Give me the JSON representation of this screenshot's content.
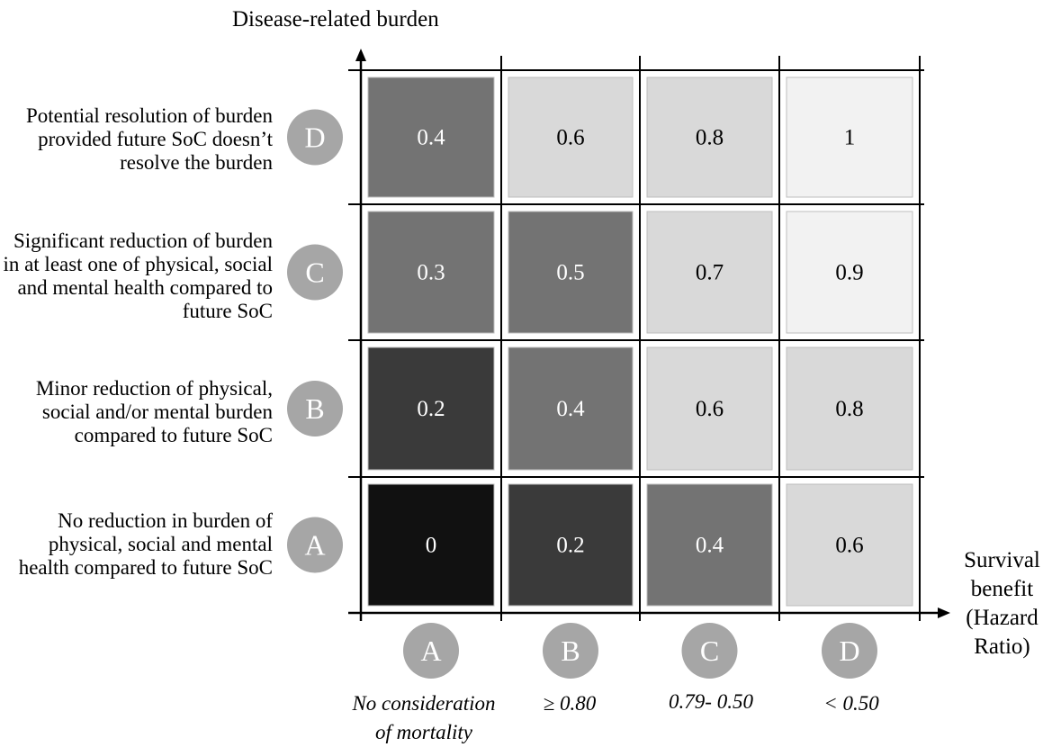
{
  "chart_data": {
    "type": "heatmap",
    "y_title": "Disease-related burden",
    "x_title_lines": [
      "Survival",
      "benefit",
      "(Hazard",
      "Ratio)"
    ],
    "columns": [
      {
        "badge": "A",
        "label_lines": [
          "No consideration",
          "of mortality"
        ]
      },
      {
        "badge": "B",
        "label_lines": [
          "≥ 0.80"
        ]
      },
      {
        "badge": "C",
        "label_lines": [
          "0.79- 0.50"
        ]
      },
      {
        "badge": "D",
        "label_lines": [
          "< 0.50"
        ]
      }
    ],
    "rows": [
      {
        "badge": "D",
        "label": "Potential resolution of burden provided future SoC doesn’t resolve the burden",
        "values": [
          "0.4",
          "0.6",
          "0.8",
          "1"
        ]
      },
      {
        "badge": "C",
        "label": "Significant reduction of burden in at least one of physical, social and mental health compared to future SoC",
        "values": [
          "0.3",
          "0.5",
          "0.7",
          "0.9"
        ]
      },
      {
        "badge": "B",
        "label": "Minor reduction of physical, social and/or mental burden compared to future SoC",
        "values": [
          "0.2",
          "0.4",
          "0.6",
          "0.8"
        ]
      },
      {
        "badge": "A",
        "label": "No reduction in burden of physical, social and mental health compared to future SoC",
        "values": [
          "0",
          "0.2",
          "0.4",
          "0.6"
        ]
      }
    ],
    "colors": {
      "0": "#111111",
      "0.2": "#3a3a3a",
      "0.3": "#737373",
      "0.4": "#737373",
      "0.5": "#737373",
      "0.6": "#d9d9d9",
      "0.7": "#d9d9d9",
      "0.8": "#d9d9d9",
      "0.9": "#f2f2f2",
      "1": "#f2f2f2",
      "badge": "#a6a6a6"
    },
    "light_text_values": [
      "0",
      "0.2",
      "0.3",
      "0.4",
      "0.5"
    ]
  }
}
